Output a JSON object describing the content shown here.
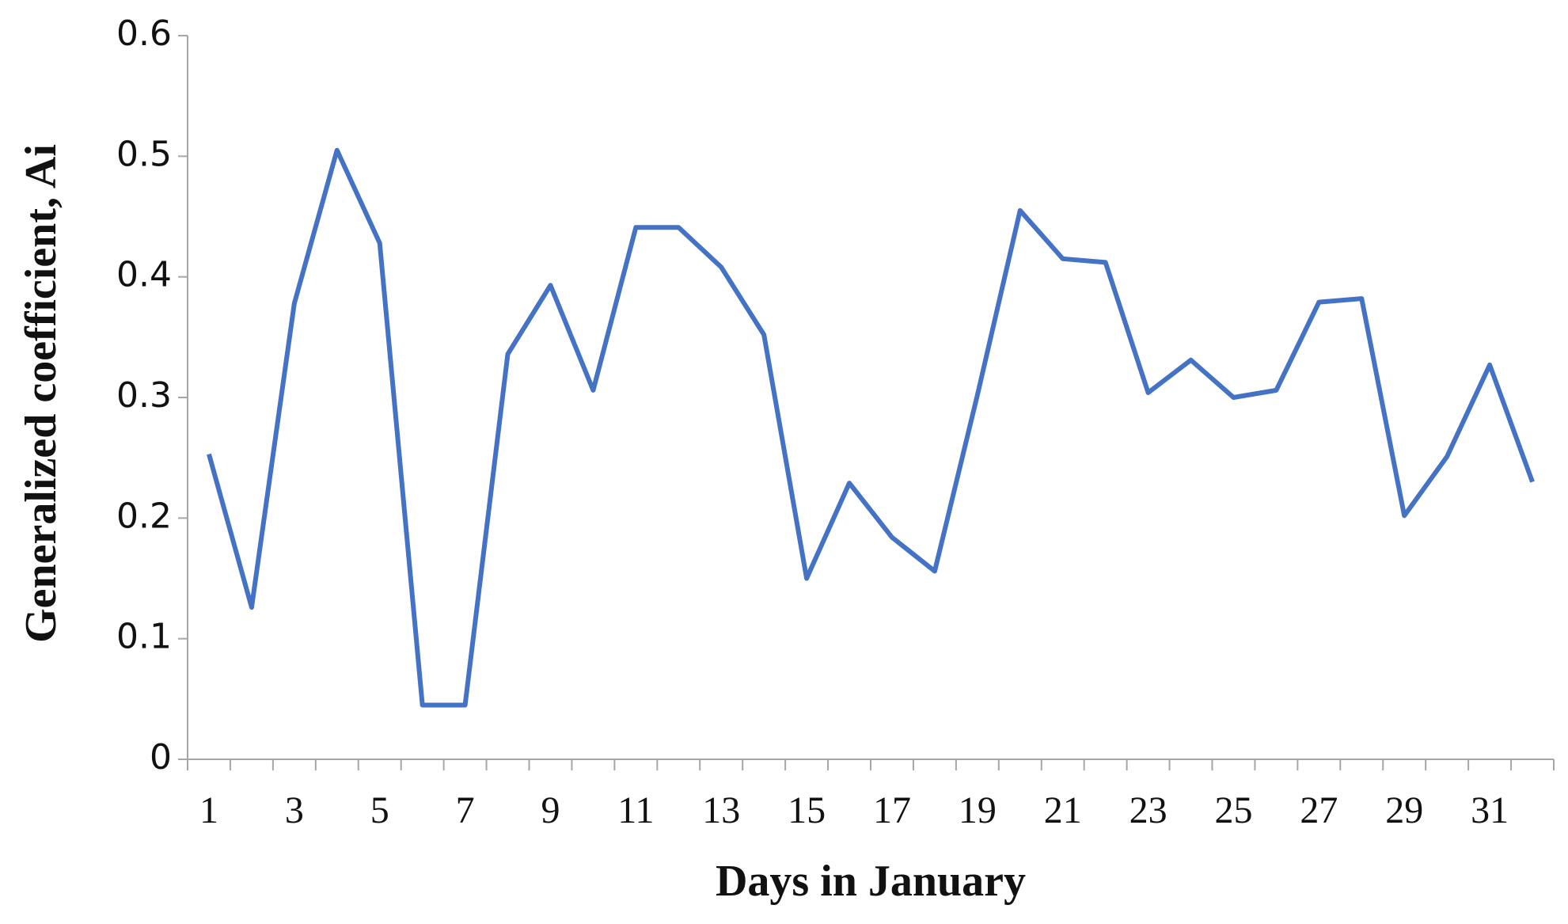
{
  "chart_data": {
    "type": "line",
    "x_label": "Days in January",
    "y_label": "Generalized coefficient, Ai",
    "categories": [
      1,
      null,
      3,
      null,
      5,
      null,
      7,
      null,
      9,
      null,
      11,
      null,
      13,
      null,
      15,
      null,
      17,
      null,
      19,
      null,
      21,
      null,
      23,
      null,
      25,
      null,
      27,
      null,
      29,
      null,
      31,
      null
    ],
    "values": [
      0.253,
      0.126,
      0.378,
      0.505,
      0.428,
      0.045,
      0.045,
      0.336,
      0.393,
      0.306,
      0.441,
      0.441,
      0.408,
      0.352,
      0.15,
      0.229,
      0.184,
      0.156,
      0.302,
      0.455,
      0.415,
      0.412,
      0.304,
      0.331,
      0.3,
      0.306,
      0.379,
      0.382,
      0.202,
      0.251,
      0.327,
      0.23
    ],
    "color": "#4472c4",
    "ylim": [
      0,
      0.6
    ],
    "yticks": [
      0,
      0.1,
      0.2,
      0.3,
      0.4,
      0.5,
      0.6
    ],
    "grid": false
  }
}
